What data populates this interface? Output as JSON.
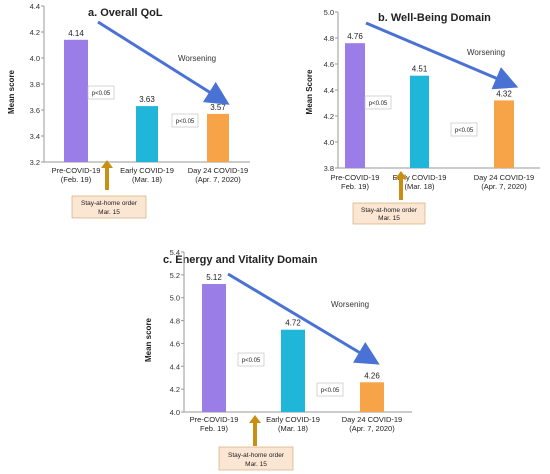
{
  "chart_data": [
    {
      "type": "bar",
      "title": "a. Overall QoL",
      "ylabel": "Mean score",
      "ylim": [
        3.2,
        4.4
      ],
      "yticks": [
        "3.2",
        "3.4",
        "3.6",
        "3.8",
        "4.0",
        "4.2",
        "4.4"
      ],
      "categories": [
        [
          "Pre-COVID-19",
          "(Feb. 19)"
        ],
        [
          "Early COVID-19",
          "(Mar. 18)"
        ],
        [
          "Day 24 COVID-19",
          "(Apr. 7, 2020)"
        ]
      ],
      "values": [
        4.14,
        3.63,
        3.57
      ],
      "value_labels": [
        "4.14",
        "3.63",
        "3.57"
      ],
      "colors": [
        "#9b7de8",
        "#1fb6d9",
        "#f6a447"
      ],
      "annotations": [
        "p<0.05",
        "p<0.05"
      ],
      "trend_label": "Worsening",
      "callout": [
        "Stay-at-home order",
        "Mar. 15"
      ],
      "grid": false
    },
    {
      "type": "bar",
      "title": "b. Well-Being Domain",
      "ylabel": "Mean Score",
      "ylim": [
        3.8,
        5.0
      ],
      "yticks": [
        "3.8",
        "4.0",
        "4.2",
        "4.4",
        "4.6",
        "4.8",
        "5.0"
      ],
      "categories": [
        [
          "Pre-COVID-19",
          "Feb. 19)"
        ],
        [
          "Early COVID-19",
          "(Mar. 18)"
        ],
        [
          "Day 24 COVID-19",
          "(Apr. 7, 2020)"
        ]
      ],
      "values": [
        4.76,
        4.51,
        4.32
      ],
      "value_labels": [
        "4.76",
        "4.51",
        "4.32"
      ],
      "colors": [
        "#9b7de8",
        "#1fb6d9",
        "#f6a447"
      ],
      "annotations": [
        "p<0.05",
        "p<0.05"
      ],
      "trend_label": "Worsening",
      "callout": [
        "Stay-at-home order",
        "Mar. 15"
      ],
      "grid": false
    },
    {
      "type": "bar",
      "title": "c. Energy and Vitality Domain",
      "ylabel": "Mean score",
      "ylim": [
        4.0,
        5.4
      ],
      "yticks": [
        "4.0",
        "4.2",
        "4.4",
        "4.6",
        "4.8",
        "5.0",
        "5.2",
        "5.4"
      ],
      "categories": [
        [
          "Pre-COVID-19",
          "Feb. 19)"
        ],
        [
          "Early COVID-19",
          "(Mar. 18)"
        ],
        [
          "Day 24 COVID-19",
          "(Apr. 7, 2020)"
        ]
      ],
      "values": [
        5.12,
        4.72,
        4.26
      ],
      "value_labels": [
        "5.12",
        "4.72",
        "4.26"
      ],
      "colors": [
        "#9b7de8",
        "#1fb6d9",
        "#f6a447"
      ],
      "annotations": [
        "p<0.05",
        "p<0.05"
      ],
      "trend_label": "Worsening",
      "callout": [
        "Stay-at-home order",
        "Mar. 15"
      ],
      "grid": false
    }
  ],
  "colors": {
    "trend_arrow": "#4a72d4",
    "callout_arrow": "#c98f12",
    "callout_fill": "#fbe5d3",
    "callout_border": "#d3a06a"
  }
}
